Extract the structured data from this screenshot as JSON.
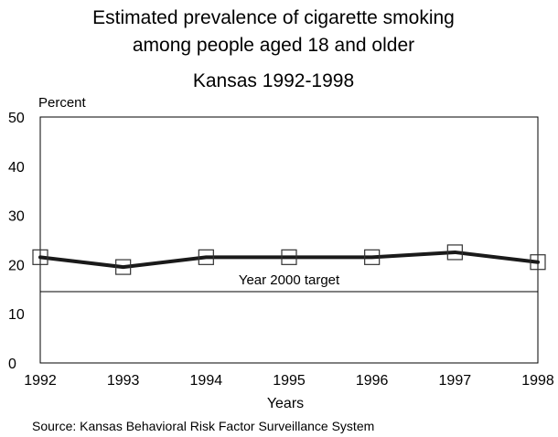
{
  "title_lines": [
    "Estimated prevalence of cigarette smoking",
    "among people aged 18 and older",
    "Kansas 1992-1998"
  ],
  "source": "Source: Kansas Behavioral Risk Factor Surveillance System",
  "chart_data": {
    "type": "line",
    "title": "Estimated prevalence of cigarette smoking among people aged 18 and older Kansas 1992-1998",
    "xlabel": "Years",
    "ylabel": "Percent",
    "x": [
      "1992",
      "1993",
      "1994",
      "1995",
      "1996",
      "1997",
      "1998"
    ],
    "series": [
      {
        "values": [
          21.5,
          19.5,
          21.5,
          21.5,
          21.5,
          22.5,
          20.5
        ],
        "color": "#1a1a1a",
        "marker": "open-square"
      }
    ],
    "yticks": [
      0,
      10,
      20,
      30,
      40,
      50
    ],
    "ylim": [
      0,
      50
    ],
    "reference_line": {
      "value": 14.5,
      "label": "Year 2000 target"
    },
    "grid": false,
    "legend": "none"
  }
}
